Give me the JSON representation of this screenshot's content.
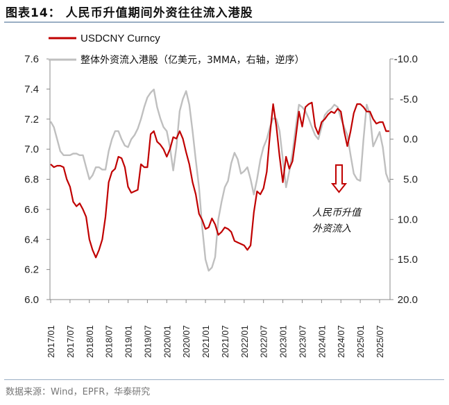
{
  "title": "图表14：  人民币升值期间外资往往流入港股",
  "source": "数据来源：Wind，EPFR，华泰研究",
  "chart_data": {
    "type": "line",
    "title": "人民币升值期间外资往往流入港股",
    "x_start": "2017/01",
    "x_frequency": "monthly",
    "x_tick_labels": [
      "2017/01",
      "2017/07",
      "2018/01",
      "2018/07",
      "2019/01",
      "2019/07",
      "2020/01",
      "2020/07",
      "2021/01",
      "2021/07",
      "2022/01",
      "2022/07",
      "2023/01",
      "2023/07",
      "2024/01",
      "2024/07",
      "2025/01",
      "2025/07"
    ],
    "left_axis": {
      "ylim": [
        6.0,
        7.6
      ],
      "ticks": [
        "6.0",
        "6.2",
        "6.4",
        "6.6",
        "6.8",
        "7.0",
        "7.2",
        "7.4",
        "7.6"
      ]
    },
    "right_axis": {
      "ylim": [
        -10,
        20
      ],
      "reversed": true,
      "ticks": [
        "-10.0",
        "-5.0",
        "0.0",
        "5.0",
        "10.0",
        "15.0",
        "20.0"
      ]
    },
    "legend_placement": "top-left",
    "grid": false,
    "series": [
      {
        "name": "USDCNY Curncy",
        "axis": "left",
        "color": "#c00000",
        "values": [
          6.9,
          6.88,
          6.89,
          6.89,
          6.88,
          6.8,
          6.75,
          6.65,
          6.62,
          6.64,
          6.6,
          6.55,
          6.4,
          6.33,
          6.28,
          6.33,
          6.4,
          6.55,
          6.78,
          6.85,
          6.87,
          6.95,
          6.94,
          6.88,
          6.75,
          6.71,
          6.72,
          6.73,
          6.9,
          6.88,
          6.88,
          7.1,
          7.12,
          7.05,
          7.03,
          7.0,
          6.95,
          7.0,
          7.08,
          7.07,
          7.12,
          7.07,
          6.98,
          6.9,
          6.78,
          6.7,
          6.57,
          6.53,
          6.47,
          6.48,
          6.54,
          6.5,
          6.43,
          6.45,
          6.48,
          6.47,
          6.45,
          6.39,
          6.38,
          6.37,
          6.36,
          6.33,
          6.36,
          6.58,
          6.72,
          6.7,
          6.74,
          6.85,
          7.1,
          7.3,
          7.15,
          6.95,
          6.78,
          6.95,
          6.87,
          6.92,
          7.08,
          7.25,
          7.15,
          7.28,
          7.3,
          7.31,
          7.15,
          7.1,
          7.18,
          7.2,
          7.23,
          7.25,
          7.24,
          7.27,
          7.25,
          7.12,
          7.02,
          7.12,
          7.24,
          7.3,
          7.3,
          7.28,
          7.25,
          7.25,
          7.2,
          7.17,
          7.18,
          7.18,
          7.12,
          7.12
        ]
      },
      {
        "name": "整体外资流入港股（亿美元，3MMA，右轴，逆序）",
        "axis": "right",
        "color": "#bfbfbf",
        "values": [
          -2.2,
          -1.5,
          0,
          1.5,
          2,
          2,
          2,
          1.8,
          1.8,
          2,
          2,
          3.5,
          5,
          4.5,
          3.5,
          3.5,
          3.8,
          3.8,
          1.5,
          0,
          -1,
          -1,
          0,
          0.8,
          1,
          0,
          -0.5,
          -1.3,
          -2.5,
          -4,
          -5.2,
          -5.8,
          -6.2,
          -4,
          -2.6,
          -1.5,
          -1,
          1,
          3.9,
          1,
          -3.5,
          -5,
          -6,
          -4.3,
          -1,
          2.6,
          6,
          11,
          15,
          16.4,
          16,
          14.7,
          10,
          7.8,
          6,
          5.2,
          3,
          1.7,
          2.5,
          4.3,
          4,
          3.5,
          5,
          6.9,
          5,
          2.6,
          1,
          0,
          -1.5,
          -2.6,
          -2.5,
          -1,
          2.6,
          6,
          4,
          1.7,
          -1.5,
          -4.3,
          -4,
          -3.5,
          -2.6,
          -1.5,
          -0.5,
          0,
          -1.5,
          -3,
          -3.5,
          -3.8,
          -4.3,
          -4,
          -2.6,
          -1.5,
          -0.5,
          2,
          4.3,
          5,
          5.2,
          0,
          -4.3,
          -3,
          0.9,
          0,
          -0.9,
          1,
          4.3,
          5.4
        ]
      }
    ],
    "annotations": [
      "人民币升值",
      "外资流入"
    ]
  }
}
